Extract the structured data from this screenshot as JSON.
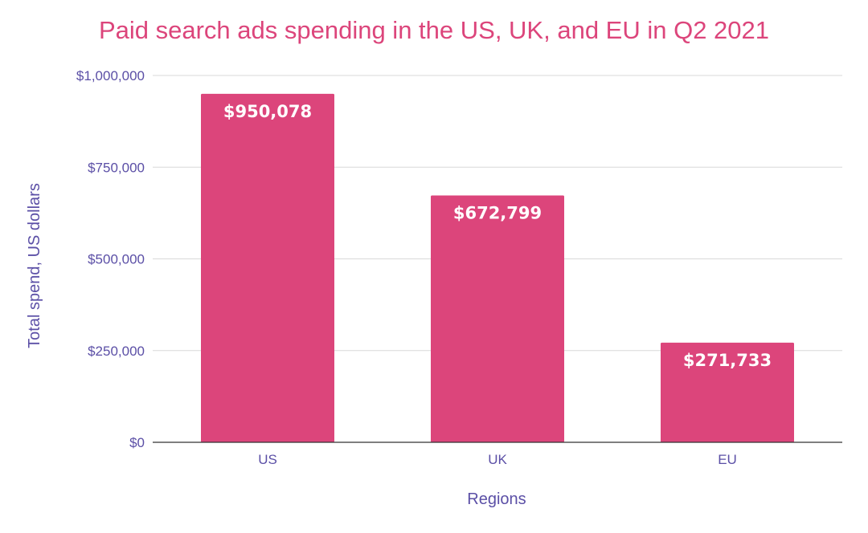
{
  "chart_data": {
    "type": "bar",
    "title": "Paid search ads spending in the US, UK, and EU in Q2 2021",
    "xlabel": "Regions",
    "ylabel": "Total spend, US dollars",
    "categories": [
      "US",
      "UK",
      "EU"
    ],
    "values": [
      950078,
      672799,
      271733
    ],
    "data_labels": [
      "$950,078",
      "$672,799",
      "$271,733"
    ],
    "ylim": [
      0,
      1000000
    ],
    "y_ticks": [
      0,
      250000,
      500000,
      750000,
      1000000
    ],
    "y_tick_labels": [
      "$0",
      "$250,000",
      "$500,000",
      "$750,000",
      "$1,000,000"
    ],
    "grid": true,
    "legend": "none",
    "colors": {
      "bar": "#dc457b",
      "title": "#dc457b",
      "axis_text": "#5b4fa6",
      "data_label": "#ffffff",
      "gridline": "#d9d9d9",
      "baseline": "#333333"
    }
  }
}
